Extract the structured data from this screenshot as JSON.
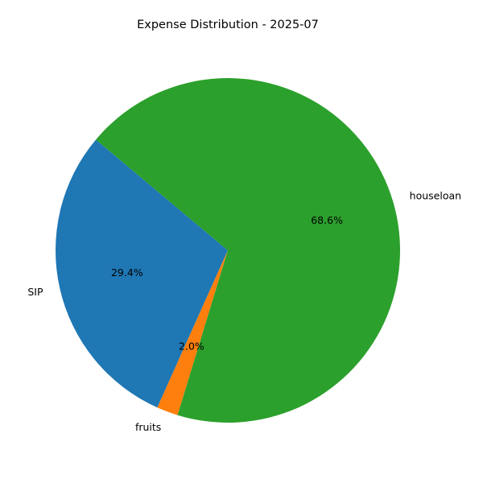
{
  "chart_data": {
    "type": "pie",
    "title": "Expense Distribution - 2025-07",
    "categories": [
      "SIP",
      "fruits",
      "houseloan"
    ],
    "values": [
      29.4,
      2.0,
      68.6
    ],
    "percent_labels": [
      "29.4%",
      "2.0%",
      "68.6%"
    ],
    "colors": [
      "#1f77b4",
      "#ff7f0e",
      "#2ca02c"
    ],
    "start_angle_deg": 140,
    "direction": "counterclockwise",
    "legend": "none"
  }
}
